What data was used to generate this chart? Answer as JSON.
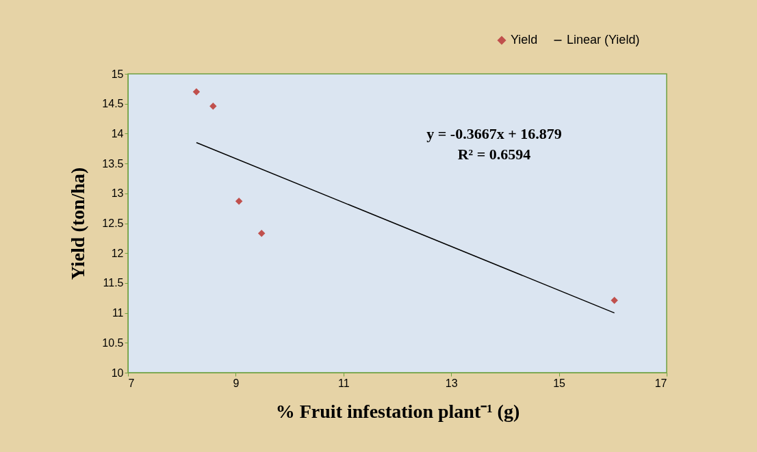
{
  "chart_data": {
    "type": "scatter",
    "xlabel": "% Fruit infestation plant⁻¹ (g)",
    "ylabel": "Yield (ton/ha)",
    "series": [
      {
        "name": "Yield",
        "color": "#c0504d",
        "marker": "diamond",
        "x": [
          8.27,
          8.58,
          9.06,
          9.48,
          16.03
        ],
        "values": [
          14.7,
          14.46,
          12.87,
          12.33,
          11.21
        ]
      },
      {
        "name": "Linear (Yield)",
        "type": "line",
        "color": "#000000",
        "line_style": "solid",
        "x": [
          8.27,
          16.03
        ],
        "values": [
          13.85,
          11.0
        ]
      }
    ],
    "xlim": [
      7,
      17
    ],
    "xticks": [
      7,
      9,
      11,
      13,
      15,
      17
    ],
    "ylim": [
      10,
      15
    ],
    "yticks": [
      10,
      10.5,
      11,
      11.5,
      12,
      12.5,
      13,
      13.5,
      14,
      14.5,
      15
    ],
    "annotations": [
      "y = -0.3667x + 16.879",
      "R² = 0.6594"
    ],
    "grid": false,
    "legend": "top right"
  }
}
